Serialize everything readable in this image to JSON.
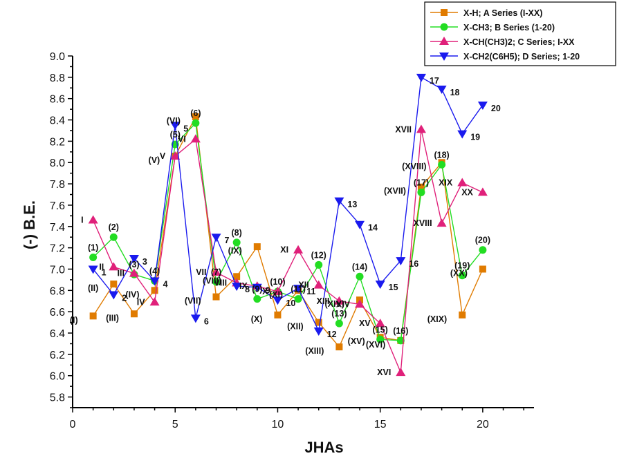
{
  "chart_data": {
    "type": "line",
    "xlabel": "JHAs",
    "ylabel": "(-) B.E.",
    "xlim": [
      0,
      22.5
    ],
    "ylim": [
      5.7,
      9.0
    ],
    "xticks": [
      0,
      5,
      10,
      15,
      20
    ],
    "yticks": [
      5.8,
      6.0,
      6.2,
      6.4,
      6.6,
      6.8,
      7.0,
      7.2,
      7.4,
      7.6,
      7.8,
      8.0,
      8.2,
      8.4,
      8.6,
      8.8,
      9.0
    ],
    "ytick_labels": [
      "5.8",
      "6.0",
      "6.2",
      "6.4",
      "6.6",
      "6.8",
      "7.0",
      "7.2",
      "7.4",
      "7.6",
      "7.8",
      "8.0",
      "8.2",
      "8.4",
      "8.6",
      "8.8",
      "9.0"
    ],
    "grid": false,
    "legend_position": "top-right",
    "series": [
      {
        "name": "X-H; A Series (I-XX)",
        "color": "#e07b00",
        "marker": "square",
        "x": [
          1,
          2,
          3,
          4,
          5,
          6,
          7,
          8,
          9,
          10,
          11,
          12,
          13,
          14,
          15,
          16,
          17,
          18,
          19,
          20
        ],
        "y": [
          6.56,
          6.86,
          6.58,
          6.8,
          8.06,
          8.43,
          6.74,
          6.93,
          7.21,
          6.57,
          6.8,
          6.5,
          6.27,
          6.71,
          6.36,
          6.33,
          7.77,
          8.0,
          6.57,
          7.0
        ],
        "labels": [
          "(I)",
          "(II)",
          "(III)",
          "(IV)",
          "(V)",
          "(VI)",
          "(VII)",
          "(VIII)",
          "(IX)",
          "(X)",
          "(XI)",
          "(XII)",
          "(XIII)",
          "(XIV)",
          "(XV)",
          "(XVI)",
          "(XVII)",
          "(XVIII)",
          "(XIX)",
          "(XX)"
        ]
      },
      {
        "name": "X-CH3; B Series (1-20)",
        "color": "#22dd22",
        "marker": "circle",
        "x": [
          1,
          2,
          3,
          4,
          5,
          6,
          7,
          8,
          9,
          10,
          11,
          12,
          13,
          14,
          15,
          16,
          17,
          18,
          19,
          20
        ],
        "y": [
          7.11,
          7.3,
          6.95,
          6.89,
          8.17,
          8.37,
          6.88,
          7.25,
          6.72,
          6.79,
          6.72,
          7.04,
          6.49,
          6.93,
          6.34,
          6.33,
          7.72,
          7.98,
          6.94,
          7.18
        ],
        "labels": [
          "(1)",
          "(2)",
          "(3)",
          "(4)",
          "(5)",
          "(6)",
          "(7)",
          "(8)",
          "(9)",
          "(10)",
          "(11)",
          "(12)",
          "(13)",
          "(14)",
          "(15)",
          "(16)",
          "(17)",
          "(18)",
          "(19)",
          "(20)"
        ]
      },
      {
        "name": "X-CH(CH3)2; C Series; I-XX",
        "color": "#e0207a",
        "marker": "triangle-up",
        "x": [
          1,
          2,
          3,
          4,
          5,
          6,
          7,
          8,
          9,
          10,
          11,
          12,
          13,
          14,
          15,
          16,
          17,
          18,
          19,
          20
        ],
        "y": [
          7.46,
          7.02,
          6.96,
          6.69,
          8.06,
          8.22,
          6.97,
          6.87,
          6.84,
          6.79,
          7.18,
          6.85,
          6.7,
          6.67,
          6.49,
          6.03,
          8.31,
          7.43,
          7.81,
          7.72
        ],
        "labels": [
          "I",
          "II",
          "III",
          "IV",
          "V",
          "VI",
          "VII",
          "VIII",
          "IX",
          "X",
          "XI",
          "XII",
          "XIII",
          "XIV",
          "XV",
          "XVI",
          "XVII",
          "XVIII",
          "XIX",
          "XX"
        ]
      },
      {
        "name": "X-CH2(C6H5); D Series; 1-20",
        "color": "#1a1aee",
        "marker": "triangle-down",
        "x": [
          1,
          2,
          3,
          4,
          5,
          6,
          7,
          8,
          9,
          10,
          11,
          12,
          13,
          14,
          15,
          16,
          17,
          18,
          19,
          20
        ],
        "y": [
          7.0,
          6.76,
          7.1,
          6.89,
          8.35,
          6.54,
          7.3,
          6.84,
          6.83,
          6.71,
          6.82,
          6.42,
          7.64,
          7.42,
          6.86,
          7.08,
          8.8,
          8.69,
          8.27,
          8.54
        ],
        "labels": [
          "1",
          "2",
          "3",
          "4",
          "5",
          "6",
          "7",
          "8",
          "9",
          "10",
          "11",
          "12",
          "13",
          "14",
          "15",
          "16",
          "17",
          "18",
          "19",
          "20"
        ]
      }
    ]
  }
}
